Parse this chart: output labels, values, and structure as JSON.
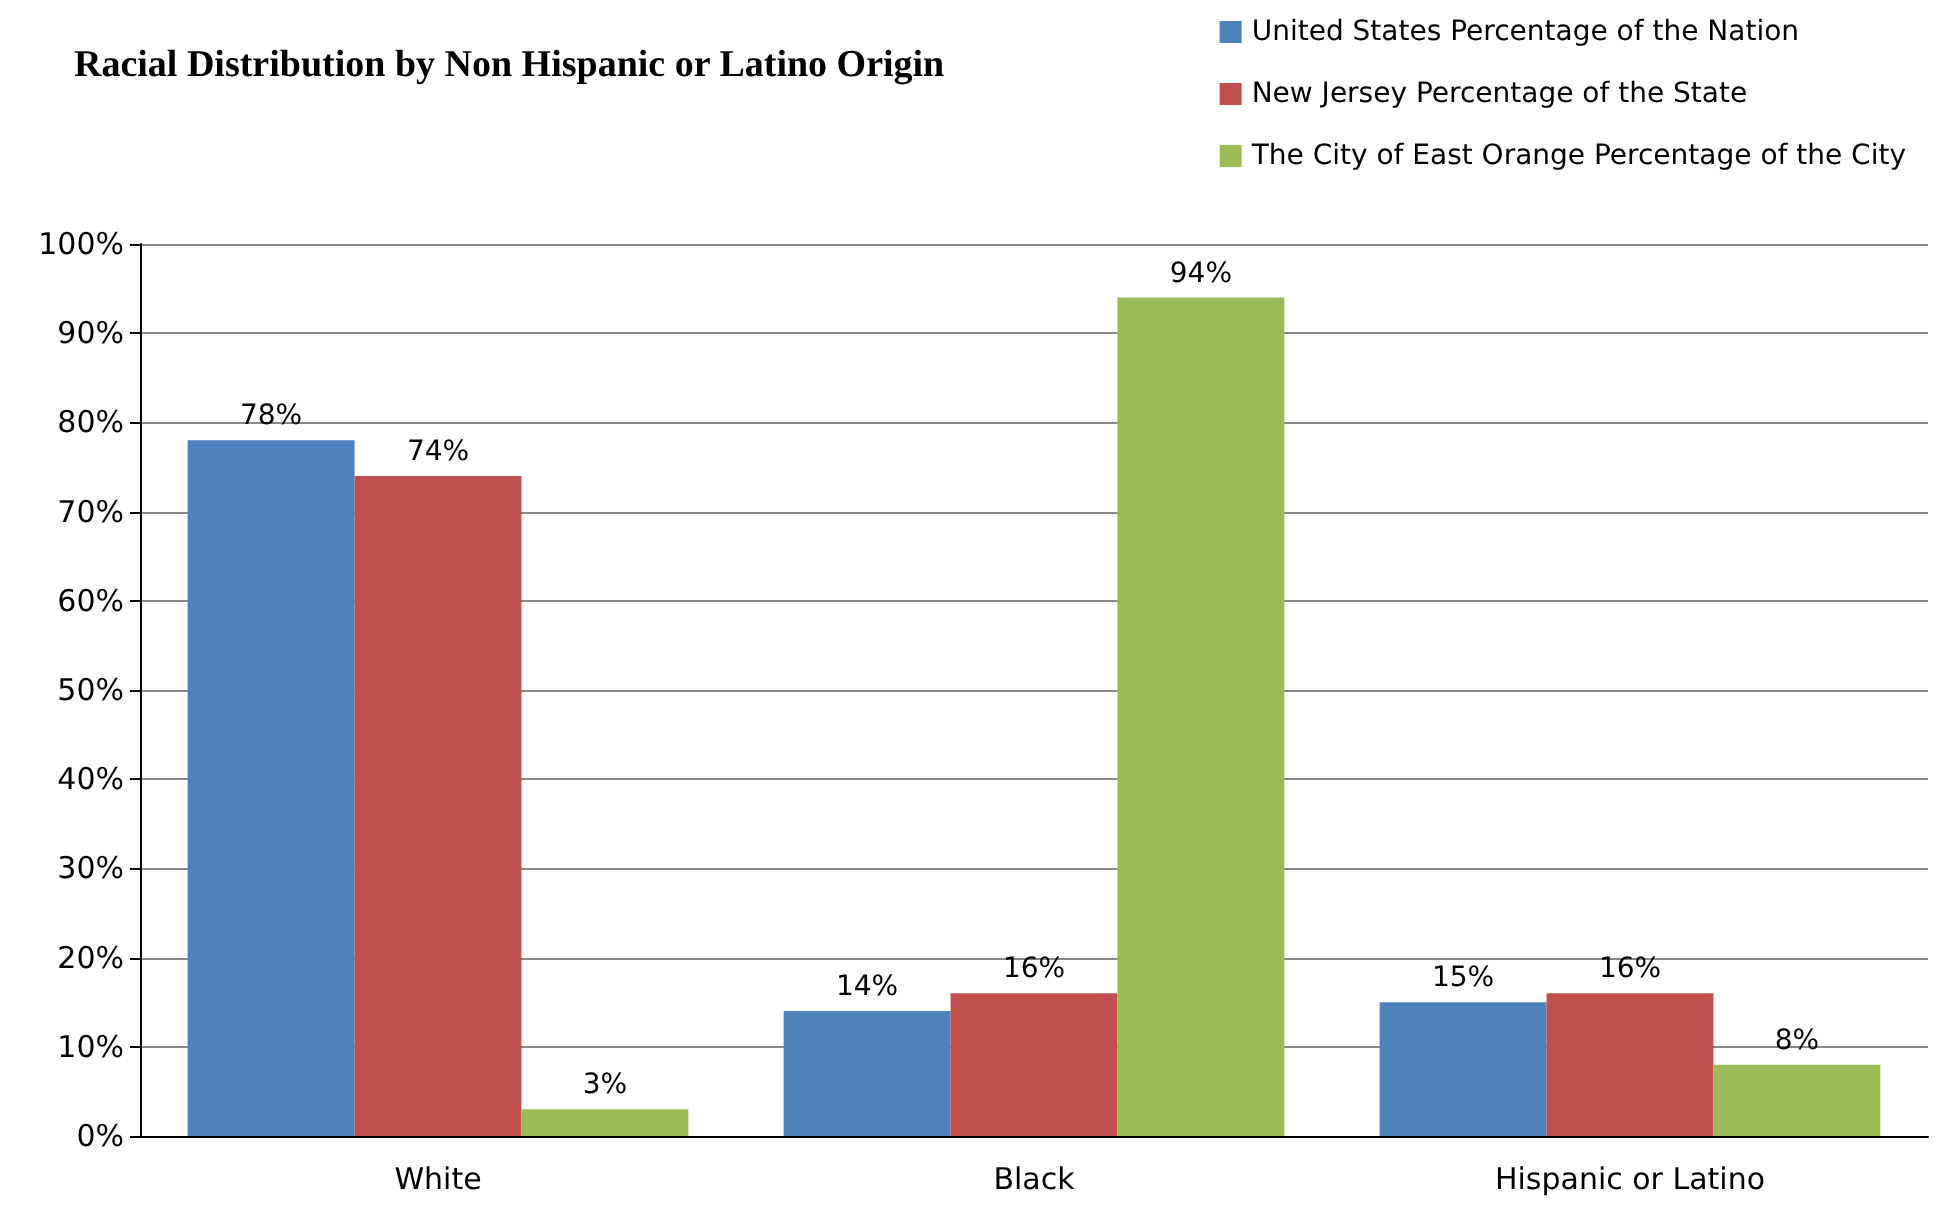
{
  "chart_data": {
    "type": "bar",
    "title": "Racial Distribution by Non Hispanic or Latino Origin",
    "categories": [
      "White",
      "Black",
      "Hispanic or Latino"
    ],
    "series": [
      {
        "name": "United States Percentage of the Nation",
        "color": "#4f81bd",
        "values": [
          78,
          14,
          15
        ],
        "value_labels": [
          "78%",
          "14%",
          "15%"
        ]
      },
      {
        "name": "New Jersey Percentage of the State",
        "color": "#c0504d",
        "values": [
          74,
          16,
          16
        ],
        "value_labels": [
          "74%",
          "16%",
          "16%"
        ]
      },
      {
        "name": "The City of East Orange Percentage of the City",
        "color": "#9bbb59",
        "values": [
          3,
          94,
          8
        ],
        "value_labels": [
          "3%",
          "94%",
          "8%"
        ]
      }
    ],
    "ylim": [
      0,
      100
    ],
    "yticks": [
      {
        "value": 0,
        "label": "0%"
      },
      {
        "value": 10,
        "label": "10%"
      },
      {
        "value": 20,
        "label": "20%"
      },
      {
        "value": 30,
        "label": "30%"
      },
      {
        "value": 40,
        "label": "40%"
      },
      {
        "value": 50,
        "label": "50%"
      },
      {
        "value": 60,
        "label": "60%"
      },
      {
        "value": 70,
        "label": "70%"
      },
      {
        "value": 80,
        "label": "80%"
      },
      {
        "value": 90,
        "label": "90%"
      },
      {
        "value": 100,
        "label": "100%"
      }
    ],
    "grid": "y",
    "legend": "top right"
  }
}
